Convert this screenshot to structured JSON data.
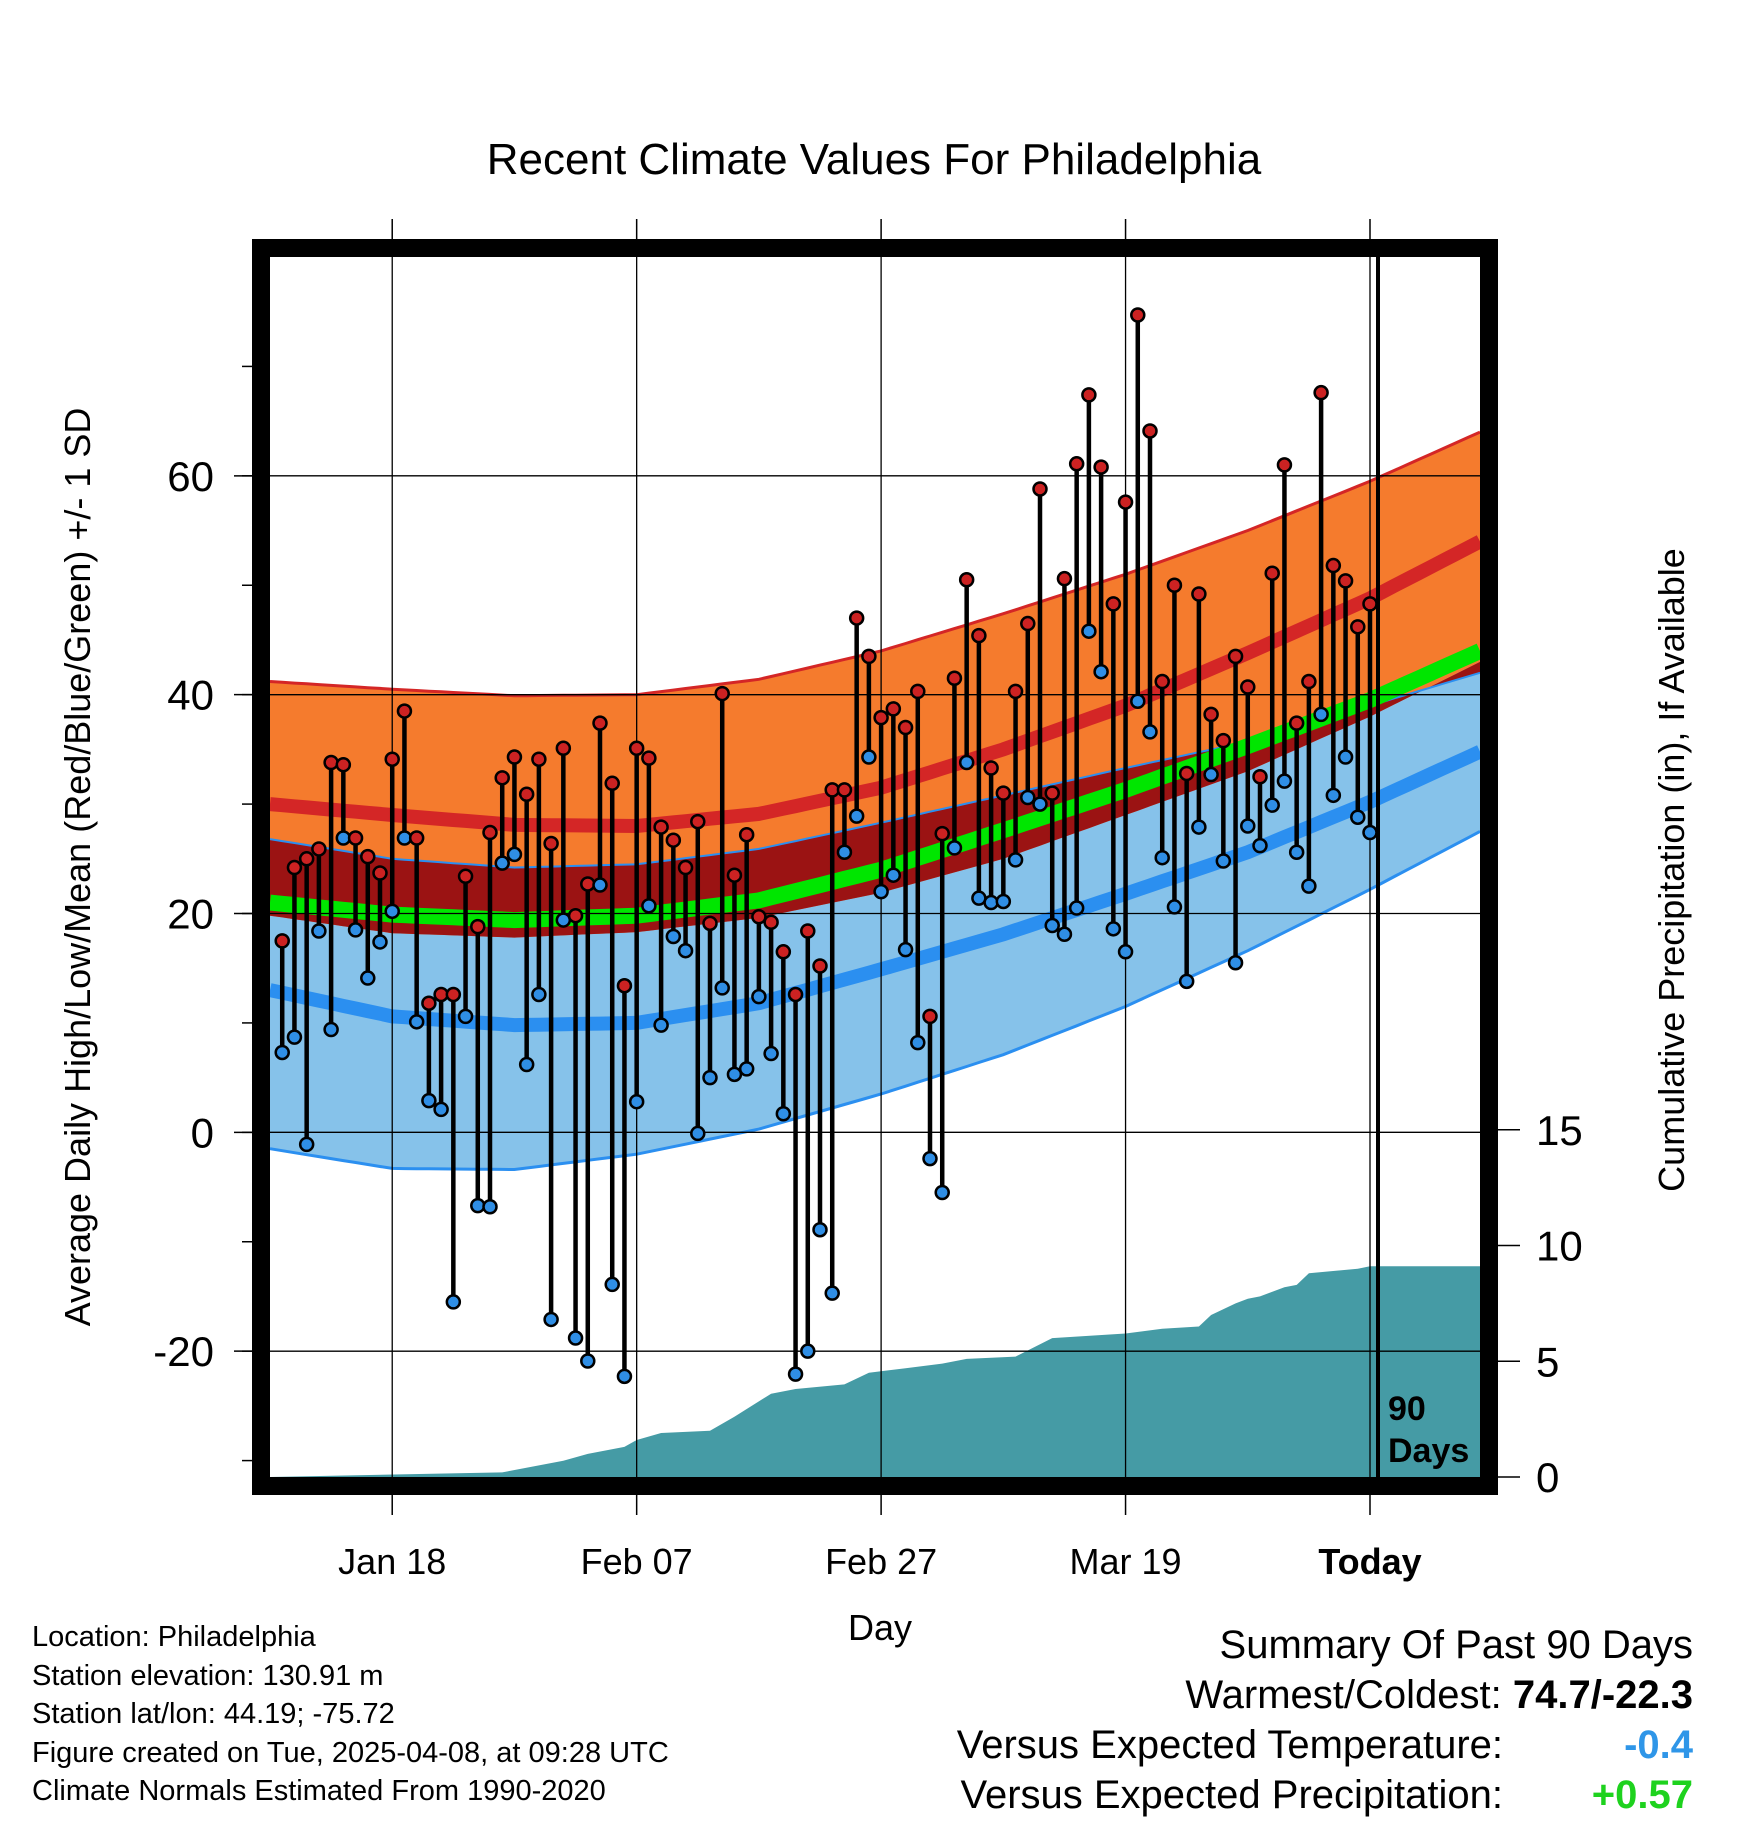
{
  "chart_data": {
    "type": "line",
    "title": "Recent Climate Values For Philadelphia",
    "xlabel": "Day",
    "ylabel": "Average Daily High/Low/Mean (Red/Blue/Green) +/- 1 SD",
    "ylabel_right": "Cumulative Precipitation (in), If Available",
    "ylim": [
      -31.5,
      80
    ],
    "xlim": [
      -90,
      9
    ],
    "ylim_right": [
      0,
      52.7
    ],
    "x_ticks": [
      {
        "x": -80,
        "label": "Jan 18"
      },
      {
        "x": -60,
        "label": "Feb 07"
      },
      {
        "x": -40,
        "label": "Feb 27"
      },
      {
        "x": -20,
        "label": "Mar 19"
      },
      {
        "x": 0,
        "label": "Today"
      }
    ],
    "y_ticks": [
      -20,
      0,
      20,
      40,
      60
    ],
    "y_ticks_right": [
      0,
      5,
      10,
      15
    ],
    "today_label": "90 Days",
    "normals": {
      "days": [
        -90,
        -80,
        -70,
        -60,
        -50,
        -40,
        -30,
        -20,
        -10,
        0,
        9
      ],
      "high_upper": [
        41.2,
        40.5,
        39.9,
        40.0,
        41.4,
        44.0,
        47.4,
        51.0,
        55.0,
        59.5,
        64.0
      ],
      "high_mean": [
        30.0,
        29.0,
        28.1,
        28.0,
        29.1,
        31.5,
        35.0,
        39.0,
        43.8,
        48.8,
        54.0
      ],
      "high_lower": [
        19.8,
        18.2,
        17.8,
        18.3,
        19.6,
        21.9,
        25.0,
        29.0,
        33.0,
        38.0,
        43.0
      ],
      "mean_mean": [
        21.0,
        19.9,
        19.4,
        19.8,
        21.2,
        24.0,
        27.6,
        31.3,
        35.3,
        39.5,
        44.0
      ],
      "low_upper": [
        26.8,
        25.0,
        24.2,
        24.5,
        25.9,
        28.3,
        30.8,
        33.3,
        35.7,
        39.0,
        42.0
      ],
      "low_mean": [
        13.0,
        10.6,
        9.8,
        10.0,
        11.8,
        14.9,
        18.1,
        21.8,
        25.6,
        30.2,
        34.8
      ],
      "low_lower": [
        -1.5,
        -3.3,
        -3.4,
        -2.0,
        0.3,
        3.5,
        7.1,
        11.5,
        16.6,
        22.2,
        27.5
      ]
    },
    "series": [
      {
        "name": "Daily High",
        "values": [
          17.5,
          24.2,
          25.0,
          25.9,
          33.8,
          33.6,
          26.9,
          25.2,
          23.7,
          34.1,
          38.5,
          26.9,
          11.8,
          12.6,
          12.6,
          23.4,
          18.8,
          27.4,
          32.4,
          34.3,
          30.9,
          34.1,
          26.4,
          35.1,
          19.8,
          22.7,
          37.4,
          31.9,
          13.4,
          35.1,
          34.2,
          27.9,
          26.7,
          24.2,
          28.4,
          19.1,
          40.1,
          23.5,
          27.2,
          19.7,
          19.2,
          16.5,
          12.6,
          18.4,
          15.2,
          31.3,
          31.3,
          47.0,
          43.5,
          37.9,
          38.7,
          37.0,
          40.3,
          10.6,
          27.3,
          41.5,
          50.5,
          45.4,
          33.3,
          31.0,
          40.3,
          46.5,
          58.8,
          31.0,
          50.6,
          61.1,
          67.4,
          60.8,
          48.3,
          57.6,
          74.7,
          64.1,
          41.2,
          50.0,
          32.8,
          49.2,
          38.2,
          35.8,
          43.5,
          40.7,
          32.5,
          51.1,
          61.0,
          37.4,
          41.2,
          67.6,
          51.8,
          50.4,
          46.2,
          48.3
        ]
      },
      {
        "name": "Daily Low",
        "values": [
          7.3,
          8.7,
          -1.1,
          18.4,
          9.4,
          26.9,
          18.5,
          14.1,
          17.4,
          20.2,
          26.9,
          10.1,
          2.9,
          2.1,
          -15.5,
          10.6,
          -6.7,
          -6.8,
          24.6,
          25.4,
          6.2,
          12.6,
          -17.1,
          19.4,
          -18.8,
          -20.9,
          22.6,
          -13.9,
          -22.3,
          2.8,
          20.7,
          9.8,
          17.9,
          16.6,
          -0.1,
          5.0,
          13.2,
          5.3,
          5.8,
          12.4,
          7.2,
          1.7,
          -22.1,
          -20.0,
          -8.9,
          -14.7,
          25.6,
          28.9,
          34.3,
          22.0,
          23.5,
          16.7,
          8.2,
          -2.4,
          -5.5,
          26.0,
          33.8,
          21.4,
          21.0,
          21.1,
          24.9,
          30.6,
          30.0,
          18.9,
          18.1,
          20.5,
          45.8,
          42.1,
          18.6,
          16.5,
          39.4,
          36.6,
          25.1,
          20.6,
          13.8,
          27.9,
          32.7,
          24.8,
          15.5,
          28.0,
          26.2,
          29.9,
          32.1,
          25.6,
          22.5,
          38.2,
          30.8,
          34.3,
          28.8,
          27.4
        ]
      }
    ],
    "precipitation": {
      "days": [
        -90,
        -71,
        -66,
        -64,
        -61,
        -60,
        -58,
        -54,
        -52,
        -49,
        -47,
        -43,
        -41,
        -38,
        -35,
        -33,
        -29,
        -26,
        -20,
        -17,
        -14,
        -13,
        -11,
        -10,
        -9,
        -7,
        -6,
        -5,
        -1,
        0,
        9
      ],
      "cumulative": [
        0.0,
        0.2,
        0.7,
        1.0,
        1.3,
        1.6,
        1.9,
        2.0,
        2.6,
        3.6,
        3.8,
        4.0,
        4.5,
        4.7,
        4.9,
        5.1,
        5.2,
        6.0,
        6.2,
        6.4,
        6.5,
        7.0,
        7.5,
        7.7,
        7.8,
        8.2,
        8.3,
        8.8,
        9.0,
        9.1,
        9.1
      ]
    }
  },
  "info": {
    "location": "Location: Philadelphia",
    "elevation": "Station elevation: 130.91 m",
    "latlon": "Station lat/lon: 44.19; -75.72",
    "created": "Figure created on Tue, 2025-04-08, at 09:28 UTC",
    "normals_period": "Climate Normals Estimated From 1990-2020"
  },
  "summary": {
    "title": "Summary Of Past 90 Days",
    "warmest_label": "Warmest/Coldest:",
    "warmest_value": "74.7/-22.3",
    "temp_label": "Versus Expected Temperature:",
    "temp_value": "-0.4",
    "precip_label": "Versus Expected Precipitation:",
    "precip_value": "+0.57"
  },
  "colors": {
    "high_band": "#f57b2d",
    "high_line": "#d42626",
    "overlap": "#9b1313",
    "mean_line": "#00e600",
    "low_band": "#86c2ea",
    "low_line": "#2b8ff0",
    "precip": "#459ba5",
    "high_dot": "#cc2222",
    "low_dot": "#2f8ee5"
  }
}
